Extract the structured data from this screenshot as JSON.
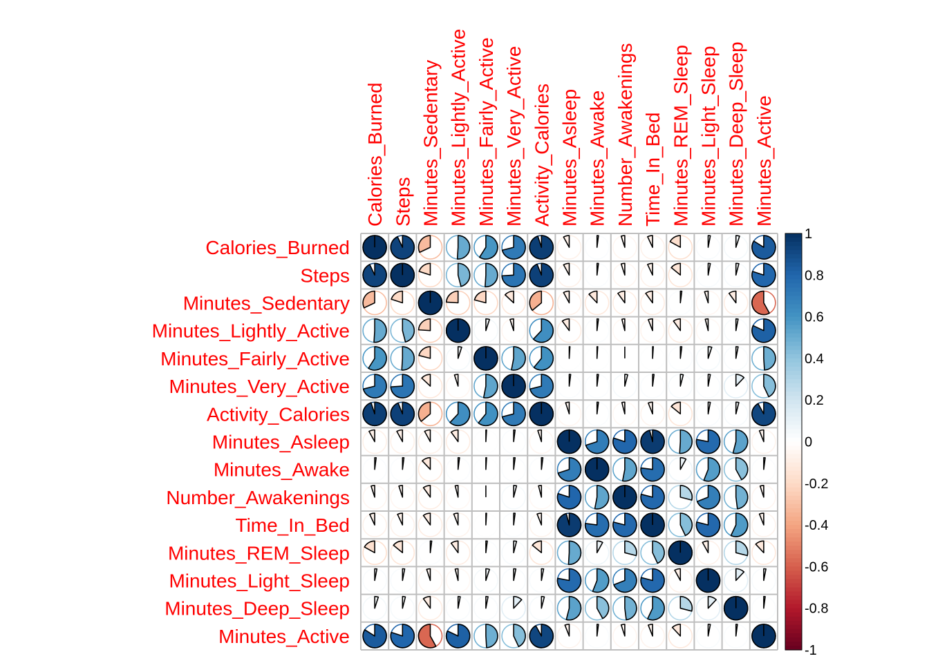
{
  "chart_data": {
    "type": "heatmap",
    "method": "pie",
    "variables": [
      "Calories_Burned",
      "Steps",
      "Minutes_Sedentary",
      "Minutes_Lightly_Active",
      "Minutes_Fairly_Active",
      "Minutes_Very_Active",
      "Activity_Calories",
      "Minutes_Asleep",
      "Minutes_Awake",
      "Number_Awakenings",
      "Time_In_Bed",
      "Minutes_REM_Sleep",
      "Minutes_Light_Sleep",
      "Minutes_Deep_Sleep",
      "Minutes_Active"
    ],
    "matrix": [
      [
        1.0,
        0.93,
        -0.32,
        0.51,
        0.59,
        0.71,
        0.95,
        -0.08,
        0.02,
        -0.05,
        -0.07,
        -0.17,
        0.03,
        0.05,
        0.84
      ],
      [
        0.93,
        1.0,
        -0.2,
        0.46,
        0.51,
        0.74,
        0.94,
        -0.08,
        0.02,
        -0.05,
        -0.07,
        -0.14,
        0.03,
        0.04,
        0.8
      ],
      [
        -0.32,
        -0.2,
        1.0,
        -0.24,
        -0.21,
        -0.13,
        -0.36,
        -0.08,
        -0.12,
        -0.1,
        -0.1,
        0.02,
        -0.05,
        -0.1,
        -0.58
      ],
      [
        0.51,
        0.46,
        -0.24,
        1.0,
        0.05,
        -0.05,
        0.62,
        -0.1,
        0.02,
        -0.04,
        -0.06,
        -0.1,
        -0.04,
        0.03,
        0.82
      ],
      [
        0.59,
        0.51,
        -0.21,
        0.05,
        1.0,
        0.53,
        0.61,
        0.01,
        0.01,
        0.0,
        0.01,
        0.02,
        0.05,
        0.03,
        0.49
      ],
      [
        0.71,
        0.74,
        -0.13,
        -0.05,
        0.53,
        1.0,
        0.71,
        0.02,
        0.02,
        0.04,
        0.02,
        0.04,
        0.03,
        0.12,
        0.43
      ],
      [
        0.95,
        0.94,
        -0.36,
        0.62,
        0.61,
        0.71,
        1.0,
        -0.05,
        0.02,
        -0.04,
        -0.06,
        -0.14,
        0.03,
        0.04,
        0.92
      ],
      [
        -0.08,
        -0.08,
        -0.08,
        -0.1,
        0.01,
        0.02,
        -0.05,
        1.0,
        0.7,
        0.8,
        0.96,
        0.51,
        0.78,
        0.54,
        -0.06
      ],
      [
        0.02,
        0.02,
        -0.12,
        0.02,
        0.01,
        0.02,
        0.02,
        0.7,
        1.0,
        0.53,
        0.77,
        0.08,
        0.56,
        0.42,
        0.02
      ],
      [
        -0.05,
        -0.05,
        -0.1,
        -0.04,
        0.0,
        0.04,
        -0.04,
        0.8,
        0.53,
        1.0,
        0.79,
        0.29,
        0.69,
        0.48,
        -0.05
      ],
      [
        -0.07,
        -0.07,
        -0.1,
        -0.06,
        0.01,
        0.02,
        -0.06,
        0.96,
        0.77,
        0.79,
        1.0,
        0.43,
        0.79,
        0.57,
        -0.06
      ],
      [
        -0.17,
        -0.14,
        0.02,
        -0.1,
        0.02,
        0.04,
        -0.14,
        0.51,
        0.08,
        0.29,
        0.43,
        1.0,
        -0.08,
        0.29,
        -0.12
      ],
      [
        0.03,
        0.03,
        -0.05,
        -0.04,
        0.05,
        0.03,
        0.03,
        0.78,
        0.56,
        0.69,
        0.79,
        -0.08,
        1.0,
        0.12,
        0.03
      ],
      [
        0.05,
        0.04,
        -0.1,
        0.03,
        0.03,
        0.12,
        0.04,
        0.54,
        0.42,
        0.48,
        0.57,
        0.29,
        0.12,
        1.0,
        0.02
      ],
      [
        0.84,
        0.8,
        -0.58,
        0.82,
        0.49,
        0.43,
        0.92,
        -0.06,
        0.02,
        -0.05,
        -0.06,
        -0.12,
        0.03,
        0.02,
        1.0
      ]
    ],
    "colorbar": {
      "ticks": [
        "1",
        "0.8",
        "0.6",
        "0.4",
        "0.2",
        "0",
        "-0.2",
        "-0.4",
        "-0.6",
        "-0.8",
        "-1"
      ],
      "range": [
        -1,
        1
      ]
    },
    "colors": {
      "labels": "#ff0000",
      "grid": "#bebebe",
      "palette": [
        "#67001F",
        "#B2182B",
        "#D6604D",
        "#F4A582",
        "#FDDBC7",
        "#FFFFFF",
        "#D1E5F0",
        "#92C5DE",
        "#4393C3",
        "#2166AC",
        "#053061"
      ]
    }
  }
}
